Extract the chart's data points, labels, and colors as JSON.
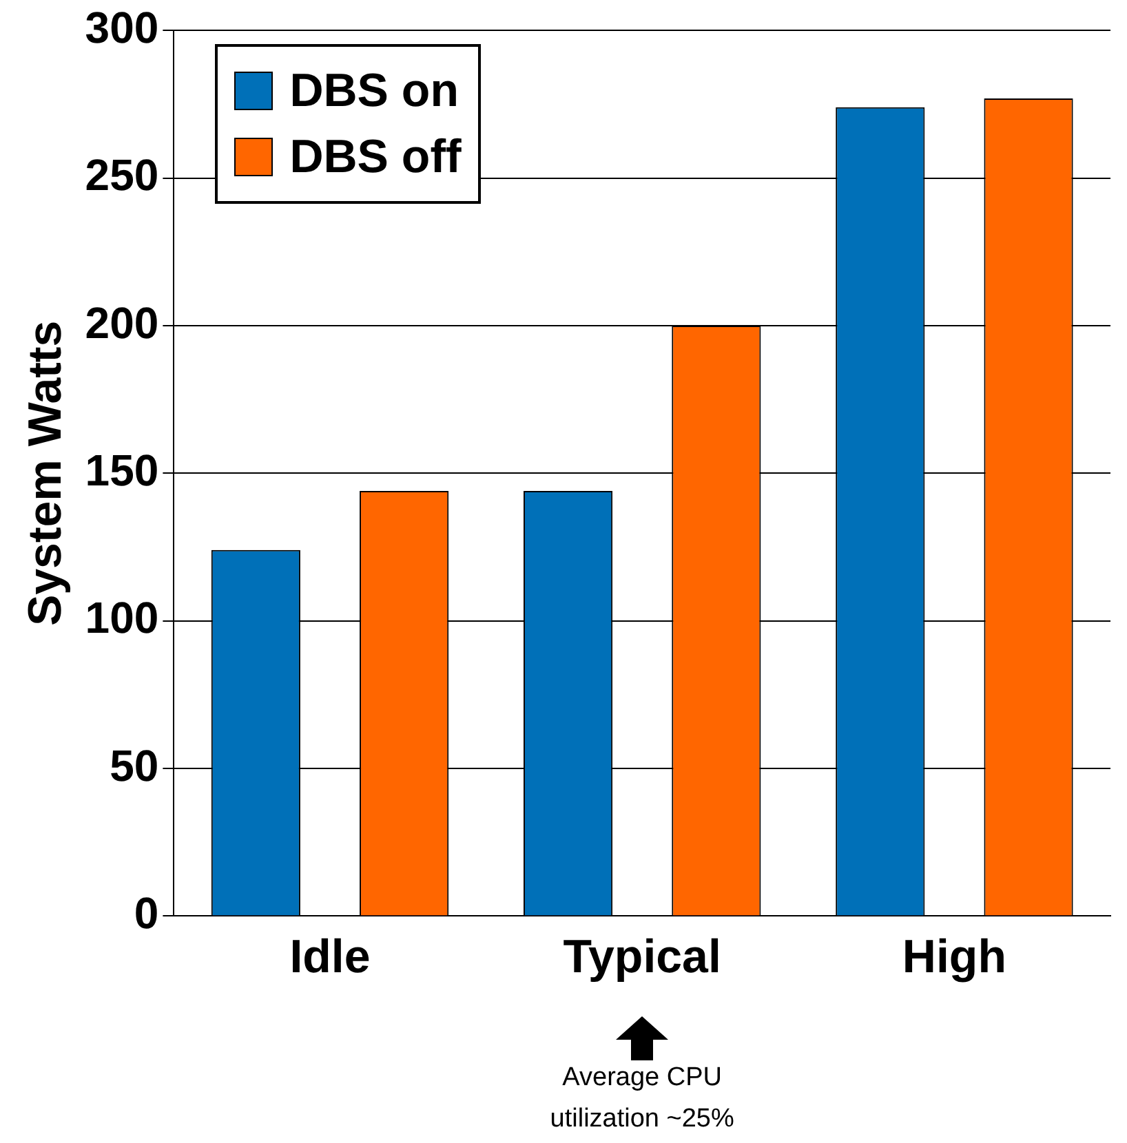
{
  "chart_data": {
    "type": "bar",
    "ylabel": "System Watts",
    "categories": [
      "Idle",
      "Typical",
      "High"
    ],
    "series": [
      {
        "name": "DBS on",
        "color": "#0070b8",
        "values": [
          124,
          144,
          274
        ]
      },
      {
        "name": "DBS off",
        "color": "#ff6600",
        "values": [
          144,
          200,
          277
        ]
      }
    ],
    "ylim": [
      0,
      300
    ],
    "yticks": [
      0,
      50,
      100,
      150,
      200,
      250,
      300
    ],
    "grid": "y",
    "legend": "top left",
    "annotations": [
      "Average CPU utilization ~25%"
    ]
  }
}
